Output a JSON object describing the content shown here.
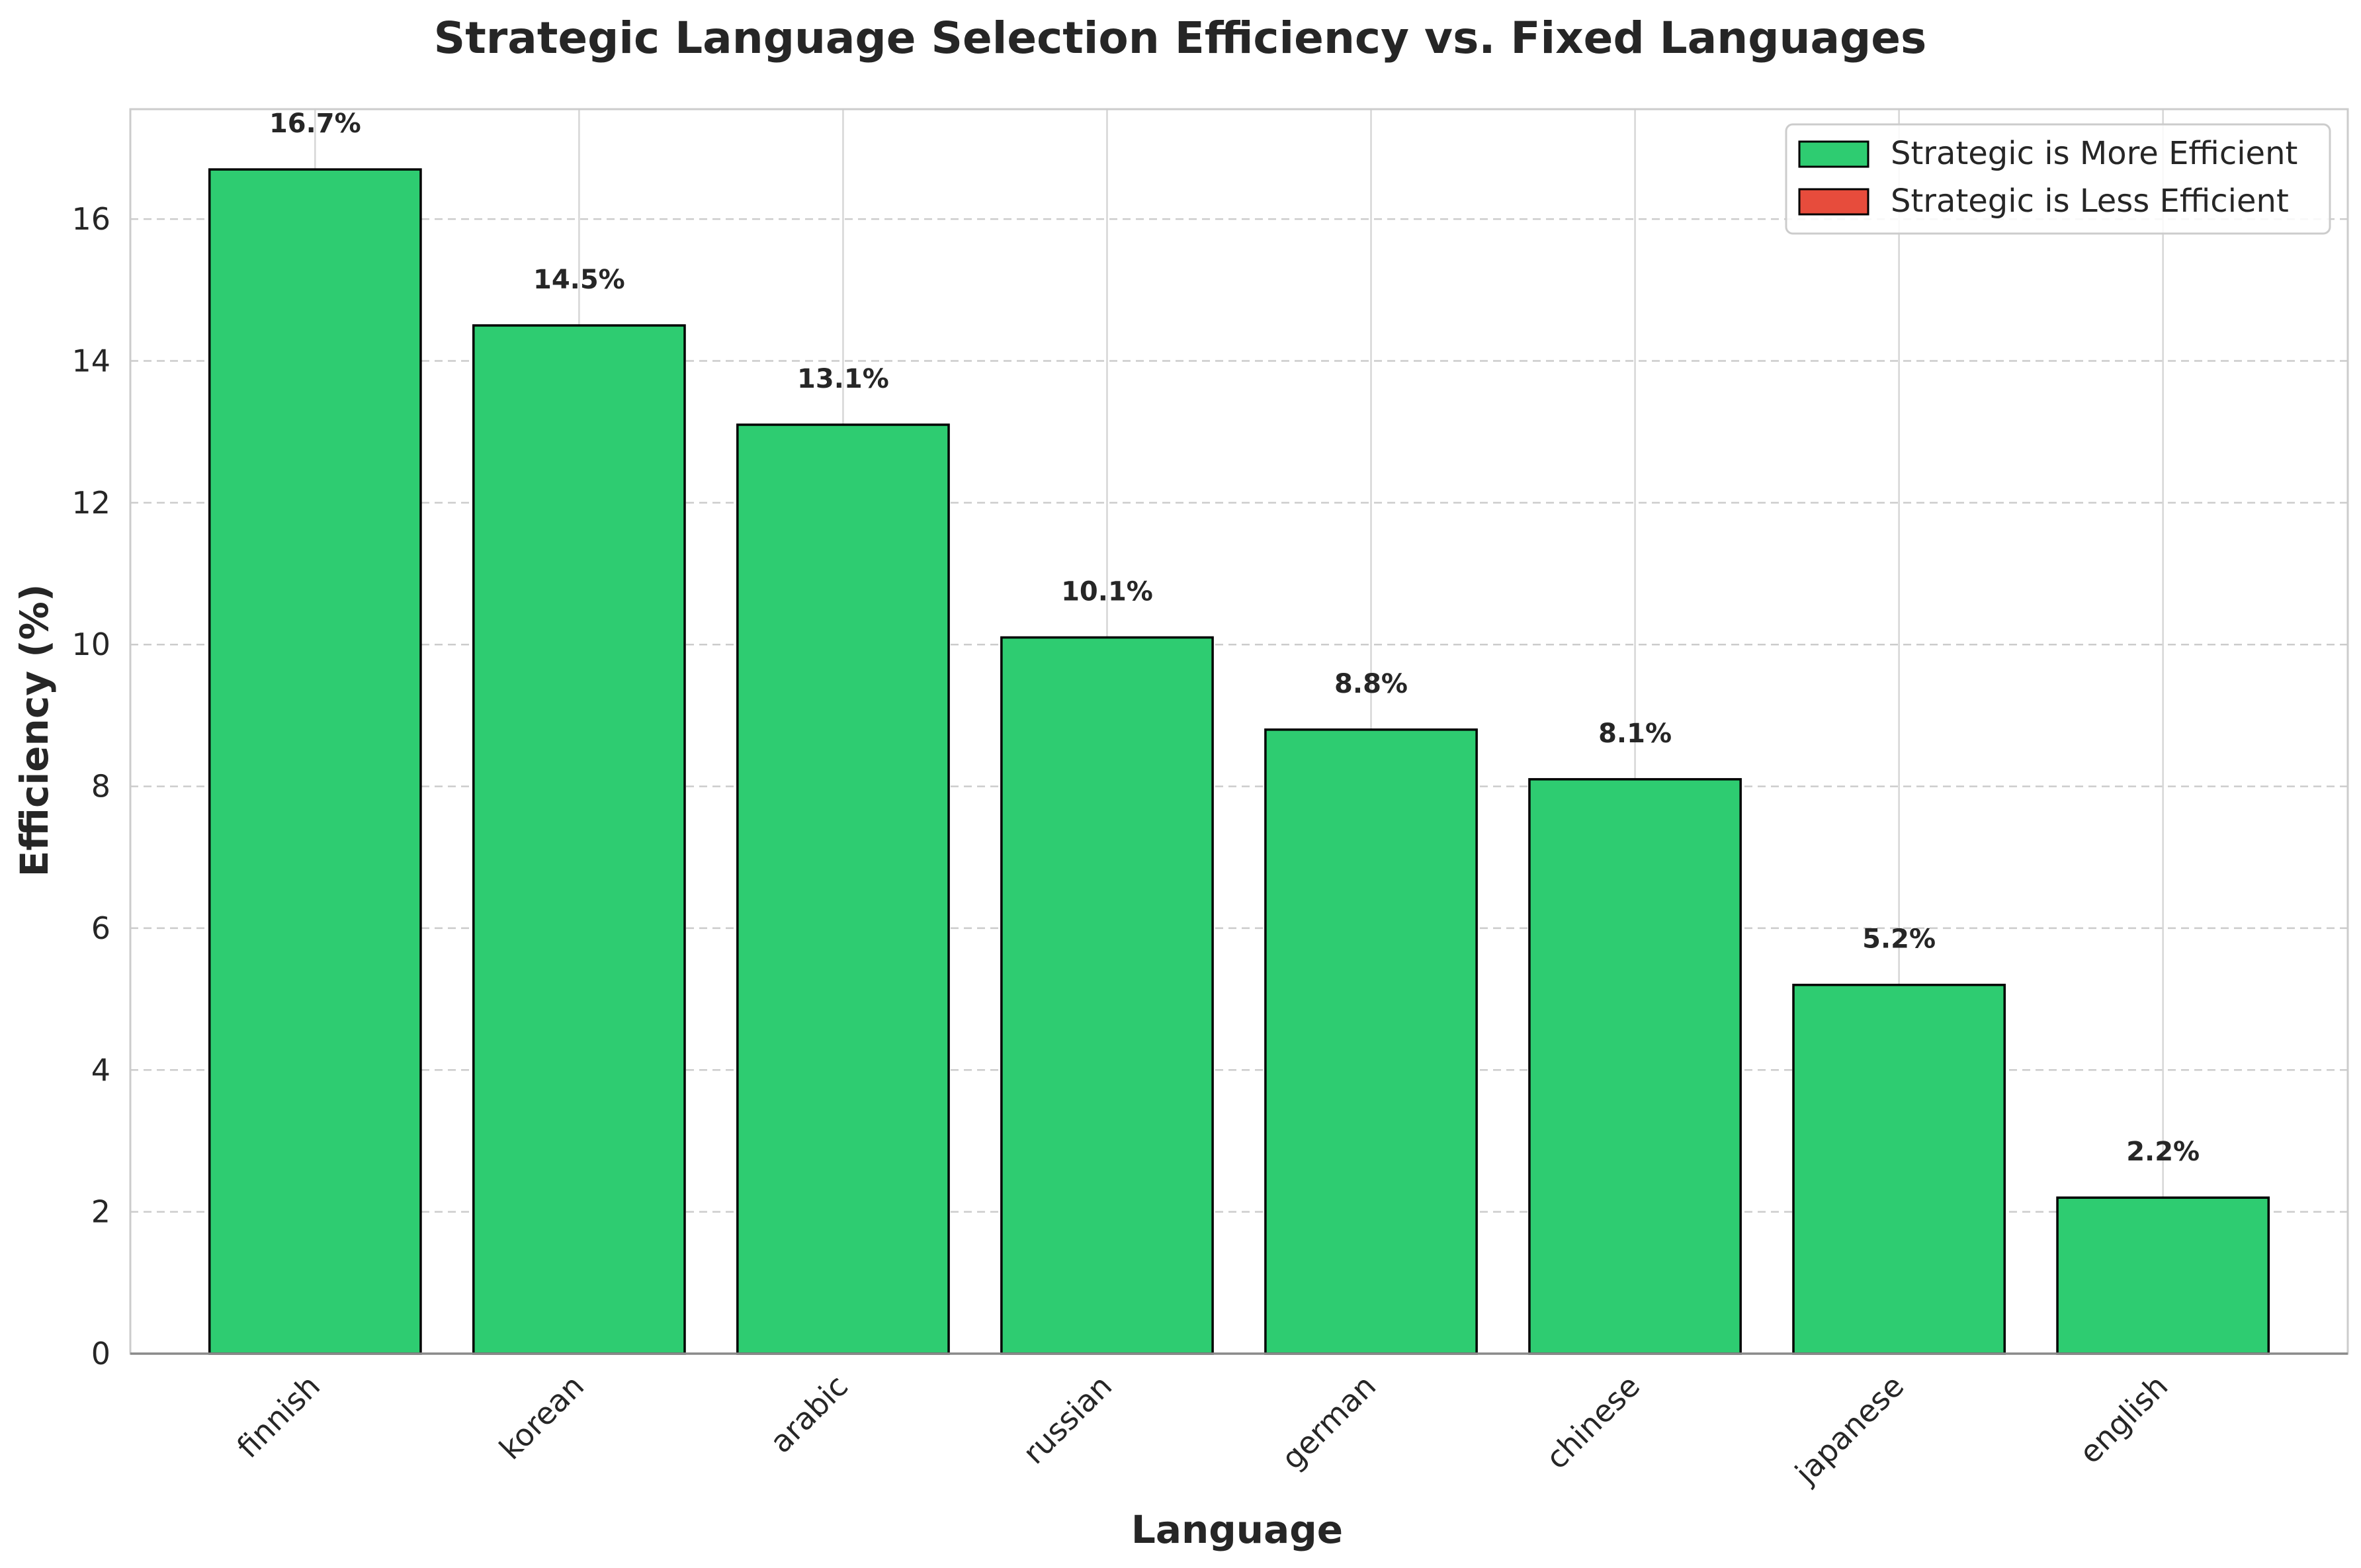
{
  "chart_data": {
    "type": "bar",
    "title": "Strategic Language Selection Efficiency vs. Fixed Languages",
    "xlabel": "Language",
    "ylabel": "Efficiency (%)",
    "categories": [
      "finnish",
      "korean",
      "arabic",
      "russian",
      "german",
      "chinese",
      "japanese",
      "english"
    ],
    "values": [
      16.7,
      14.5,
      13.1,
      10.1,
      8.8,
      8.1,
      5.2,
      2.2
    ],
    "value_labels": [
      "16.7%",
      "14.5%",
      "13.1%",
      "10.1%",
      "8.8%",
      "8.1%",
      "5.2%",
      "2.2%"
    ],
    "yticks": [
      0,
      2,
      4,
      6,
      8,
      10,
      12,
      14,
      16
    ],
    "ylim": [
      0,
      17.55
    ],
    "grid": true,
    "legend_position": "top-right",
    "legend": [
      {
        "label": "Strategic is More Efficient",
        "color": "#2ecc71"
      },
      {
        "label": "Strategic is Less Efficient",
        "color": "#e74c3c"
      }
    ],
    "colors": {
      "positive": "#2ecc71",
      "negative": "#e74c3c",
      "edge": "#000000"
    }
  }
}
